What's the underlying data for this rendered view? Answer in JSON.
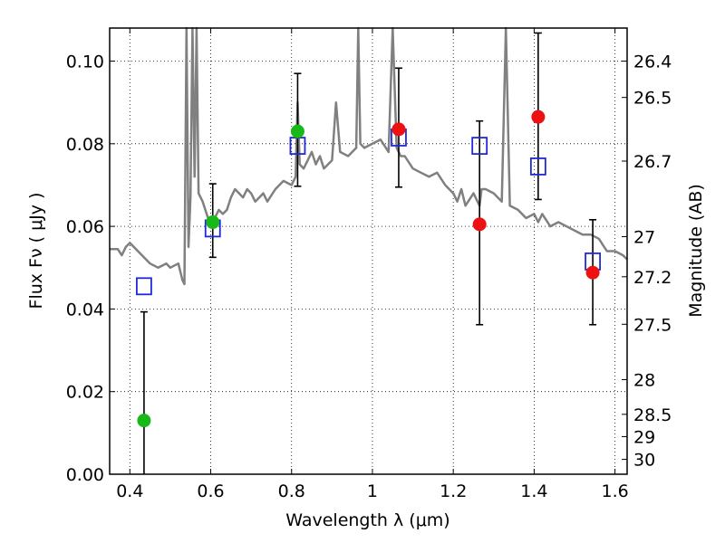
{
  "chart_data": {
    "type": "scatter",
    "xlabel": "Wavelength  λ (μm)",
    "ylabel": "Flux  Fν  ( μJy )",
    "y2label": "Magnitude (AB)",
    "xlim": [
      0.35,
      1.63
    ],
    "ylim": [
      0.0,
      0.108
    ],
    "grid": true,
    "x_ticks": [
      0.4,
      0.6,
      0.8,
      1.0,
      1.2,
      1.4,
      1.6
    ],
    "x_tick_labels": [
      "0.4",
      "0.6",
      "0.8",
      "1",
      "1.2",
      "1.4",
      "1.6"
    ],
    "y_ticks": [
      0.0,
      0.02,
      0.04,
      0.06,
      0.08,
      0.1
    ],
    "y_tick_labels": [
      "0.00",
      "0.02",
      "0.04",
      "0.06",
      "0.08",
      "0.10"
    ],
    "mag_ticks": [
      {
        "label": "26.4",
        "flux": 0.1
      },
      {
        "label": "26.5",
        "flux": 0.0912
      },
      {
        "label": "26.7",
        "flux": 0.0758
      },
      {
        "label": "27",
        "flux": 0.0575
      },
      {
        "label": "27.2",
        "flux": 0.0478
      },
      {
        "label": "27.5",
        "flux": 0.0363
      },
      {
        "label": "28",
        "flux": 0.0229
      },
      {
        "label": "28.5",
        "flux": 0.0145
      },
      {
        "label": "29",
        "flux": 0.0091
      },
      {
        "label": "30",
        "flux": 0.0036
      }
    ],
    "series": [
      {
        "color": "#808080",
        "style": "line",
        "x": [
          0.35,
          0.37,
          0.38,
          0.39,
          0.4,
          0.42,
          0.43,
          0.44,
          0.45,
          0.47,
          0.49,
          0.5,
          0.52,
          0.53,
          0.535,
          0.54,
          0.545,
          0.55,
          0.555,
          0.56,
          0.565,
          0.57,
          0.58,
          0.6,
          0.62,
          0.63,
          0.64,
          0.65,
          0.655,
          0.66,
          0.67,
          0.68,
          0.69,
          0.7,
          0.71,
          0.72,
          0.73,
          0.74,
          0.76,
          0.78,
          0.8,
          0.81,
          0.815,
          0.82,
          0.83,
          0.84,
          0.85,
          0.86,
          0.87,
          0.88,
          0.9,
          0.91,
          0.92,
          0.94,
          0.95,
          0.96,
          0.965,
          0.97,
          0.98,
          1.0,
          1.02,
          1.04,
          1.05,
          1.06,
          1.07,
          1.08,
          1.1,
          1.12,
          1.14,
          1.16,
          1.18,
          1.2,
          1.21,
          1.22,
          1.23,
          1.25,
          1.26,
          1.265,
          1.27,
          1.28,
          1.3,
          1.32,
          1.33,
          1.34,
          1.36,
          1.38,
          1.4,
          1.41,
          1.42,
          1.44,
          1.46,
          1.5,
          1.52,
          1.54,
          1.56,
          1.58,
          1.6,
          1.62,
          1.63
        ],
        "y": [
          0.0545,
          0.0545,
          0.053,
          0.055,
          0.056,
          0.054,
          0.053,
          0.052,
          0.051,
          0.05,
          0.051,
          0.05,
          0.051,
          0.047,
          0.046,
          0.11,
          0.055,
          0.067,
          0.11,
          0.072,
          0.11,
          0.068,
          0.066,
          0.06,
          0.064,
          0.063,
          0.064,
          0.067,
          0.068,
          0.069,
          0.068,
          0.067,
          0.069,
          0.068,
          0.066,
          0.067,
          0.068,
          0.066,
          0.069,
          0.071,
          0.07,
          0.072,
          0.09,
          0.075,
          0.074,
          0.076,
          0.078,
          0.075,
          0.077,
          0.074,
          0.076,
          0.09,
          0.078,
          0.077,
          0.078,
          0.079,
          0.11,
          0.08,
          0.079,
          0.08,
          0.081,
          0.078,
          0.11,
          0.079,
          0.077,
          0.077,
          0.074,
          0.073,
          0.072,
          0.073,
          0.07,
          0.068,
          0.066,
          0.069,
          0.065,
          0.068,
          0.066,
          0.065,
          0.069,
          0.069,
          0.068,
          0.066,
          0.11,
          0.065,
          0.064,
          0.062,
          0.063,
          0.061,
          0.063,
          0.06,
          0.061,
          0.059,
          0.058,
          0.058,
          0.057,
          0.054,
          0.054,
          0.053,
          0.052
        ]
      },
      {
        "color": "#1f2ad6",
        "style": "open-square",
        "x": [
          0.435,
          0.605,
          0.815,
          1.065,
          1.265,
          1.41,
          1.545
        ],
        "y": [
          0.0455,
          0.0595,
          0.0795,
          0.0815,
          0.0795,
          0.0745,
          0.0515
        ]
      },
      {
        "color": "#18b818",
        "style": "filled-circle-errorbar",
        "x": [
          0.435,
          0.605,
          0.815
        ],
        "y": [
          0.013,
          0.061,
          0.083
        ],
        "yerr_low": [
          0.0,
          0.0525,
          0.0697
        ],
        "yerr_high": [
          0.0393,
          0.0703,
          0.097
        ]
      },
      {
        "color": "#ee1111",
        "style": "filled-circle-errorbar",
        "x": [
          1.065,
          1.265,
          1.41,
          1.545
        ],
        "y": [
          0.0835,
          0.0605,
          0.0865,
          0.0488
        ],
        "yerr_low": [
          0.0695,
          0.0362,
          0.0665,
          0.0362
        ],
        "yerr_high": [
          0.0983,
          0.0855,
          0.1068,
          0.0616
        ]
      }
    ]
  }
}
